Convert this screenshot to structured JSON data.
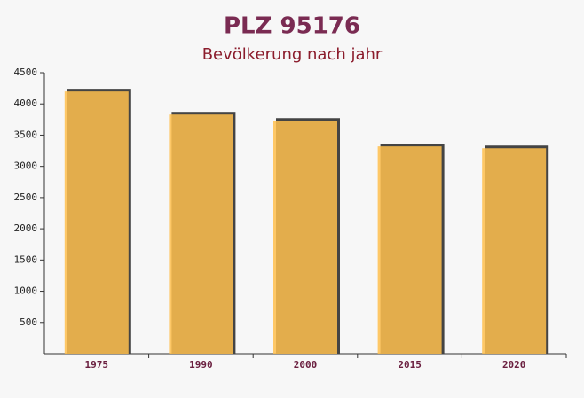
{
  "chart_data": {
    "type": "bar",
    "title": "PLZ 95176",
    "subtitle": "Bevölkerung nach jahr",
    "categories": [
      "1975",
      "1990",
      "2000",
      "2015",
      "2020"
    ],
    "values": [
      4200,
      3830,
      3730,
      3320,
      3290
    ],
    "color": "#ffc04d",
    "ylim": [
      0,
      4500
    ],
    "yticks": [
      500,
      1000,
      1500,
      2000,
      2500,
      3000,
      3500,
      4000,
      4500
    ]
  }
}
